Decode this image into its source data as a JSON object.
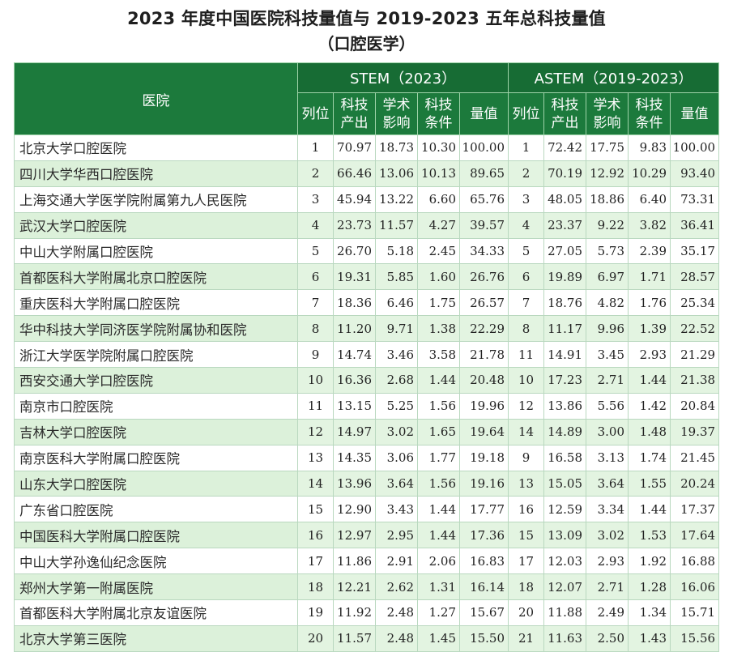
{
  "title": "2023 年度中国医院科技量值与 2019-2023 五年总科技量值",
  "subtitle": "（口腔医学）",
  "header": {
    "hospital": "医院",
    "stem_group": "STEM（2023）",
    "astem_group": "ASTEM（2019-2023）",
    "rank": "列位",
    "output_line1": "科技",
    "output_line2": "产出",
    "impact_line1": "学术",
    "impact_line2": "影响",
    "condition_line1": "科技",
    "condition_line2": "条件",
    "value": "量值"
  },
  "rows": [
    {
      "name": "北京大学口腔医院",
      "stem": [
        "1",
        "70.97",
        "18.73",
        "10.30",
        "100.00"
      ],
      "astem": [
        "1",
        "72.42",
        "17.75",
        "9.83",
        "100.00"
      ]
    },
    {
      "name": "四川大学华西口腔医院",
      "stem": [
        "2",
        "66.46",
        "13.06",
        "10.13",
        "89.65"
      ],
      "astem": [
        "2",
        "70.19",
        "12.92",
        "10.29",
        "93.40"
      ]
    },
    {
      "name": "上海交通大学医学院附属第九人民医院",
      "stem": [
        "3",
        "45.94",
        "13.22",
        "6.60",
        "65.76"
      ],
      "astem": [
        "3",
        "48.05",
        "18.86",
        "6.40",
        "73.31"
      ]
    },
    {
      "name": "武汉大学口腔医院",
      "stem": [
        "4",
        "23.73",
        "11.57",
        "4.27",
        "39.57"
      ],
      "astem": [
        "4",
        "23.37",
        "9.22",
        "3.82",
        "36.41"
      ]
    },
    {
      "name": "中山大学附属口腔医院",
      "stem": [
        "5",
        "26.70",
        "5.18",
        "2.45",
        "34.33"
      ],
      "astem": [
        "5",
        "27.05",
        "5.73",
        "2.39",
        "35.17"
      ]
    },
    {
      "name": "首都医科大学附属北京口腔医院",
      "stem": [
        "6",
        "19.31",
        "5.85",
        "1.60",
        "26.76"
      ],
      "astem": [
        "6",
        "19.89",
        "6.97",
        "1.71",
        "28.57"
      ]
    },
    {
      "name": "重庆医科大学附属口腔医院",
      "stem": [
        "7",
        "18.36",
        "6.46",
        "1.75",
        "26.57"
      ],
      "astem": [
        "7",
        "18.76",
        "4.82",
        "1.76",
        "25.34"
      ]
    },
    {
      "name": "华中科技大学同济医学院附属协和医院",
      "stem": [
        "8",
        "11.20",
        "9.71",
        "1.38",
        "22.29"
      ],
      "astem": [
        "8",
        "11.17",
        "9.96",
        "1.39",
        "22.52"
      ]
    },
    {
      "name": "浙江大学医学院附属口腔医院",
      "stem": [
        "9",
        "14.74",
        "3.46",
        "3.58",
        "21.78"
      ],
      "astem": [
        "11",
        "14.91",
        "3.45",
        "2.93",
        "21.29"
      ]
    },
    {
      "name": "西安交通大学口腔医院",
      "stem": [
        "10",
        "16.36",
        "2.68",
        "1.44",
        "20.48"
      ],
      "astem": [
        "10",
        "17.23",
        "2.71",
        "1.44",
        "21.38"
      ]
    },
    {
      "name": "南京市口腔医院",
      "stem": [
        "11",
        "13.15",
        "5.25",
        "1.56",
        "19.96"
      ],
      "astem": [
        "12",
        "13.86",
        "5.56",
        "1.42",
        "20.84"
      ]
    },
    {
      "name": "吉林大学口腔医院",
      "stem": [
        "12",
        "14.97",
        "3.02",
        "1.65",
        "19.64"
      ],
      "astem": [
        "14",
        "14.89",
        "3.00",
        "1.48",
        "19.37"
      ]
    },
    {
      "name": "南京医科大学附属口腔医院",
      "stem": [
        "13",
        "14.35",
        "3.06",
        "1.77",
        "19.18"
      ],
      "astem": [
        "9",
        "16.58",
        "3.13",
        "1.74",
        "21.45"
      ]
    },
    {
      "name": "山东大学口腔医院",
      "stem": [
        "14",
        "13.96",
        "3.64",
        "1.56",
        "19.16"
      ],
      "astem": [
        "13",
        "15.05",
        "3.64",
        "1.55",
        "20.24"
      ]
    },
    {
      "name": "广东省口腔医院",
      "stem": [
        "15",
        "12.90",
        "3.43",
        "1.44",
        "17.77"
      ],
      "astem": [
        "16",
        "12.59",
        "3.34",
        "1.44",
        "17.37"
      ]
    },
    {
      "name": "中国医科大学附属口腔医院",
      "stem": [
        "16",
        "12.97",
        "2.95",
        "1.44",
        "17.36"
      ],
      "astem": [
        "15",
        "13.09",
        "3.02",
        "1.53",
        "17.64"
      ]
    },
    {
      "name": "中山大学孙逸仙纪念医院",
      "stem": [
        "17",
        "11.86",
        "2.91",
        "2.06",
        "16.83"
      ],
      "astem": [
        "17",
        "12.03",
        "2.93",
        "1.92",
        "16.88"
      ]
    },
    {
      "name": "郑州大学第一附属医院",
      "stem": [
        "18",
        "12.21",
        "2.62",
        "1.31",
        "16.14"
      ],
      "astem": [
        "18",
        "12.07",
        "2.71",
        "1.28",
        "16.06"
      ]
    },
    {
      "name": "首都医科大学附属北京友谊医院",
      "stem": [
        "19",
        "11.92",
        "2.48",
        "1.27",
        "15.67"
      ],
      "astem": [
        "20",
        "11.88",
        "2.49",
        "1.34",
        "15.71"
      ]
    },
    {
      "name": "北京大学第三医院",
      "stem": [
        "20",
        "11.57",
        "2.48",
        "1.45",
        "15.50"
      ],
      "astem": [
        "21",
        "11.63",
        "2.50",
        "1.43",
        "15.56"
      ]
    }
  ]
}
